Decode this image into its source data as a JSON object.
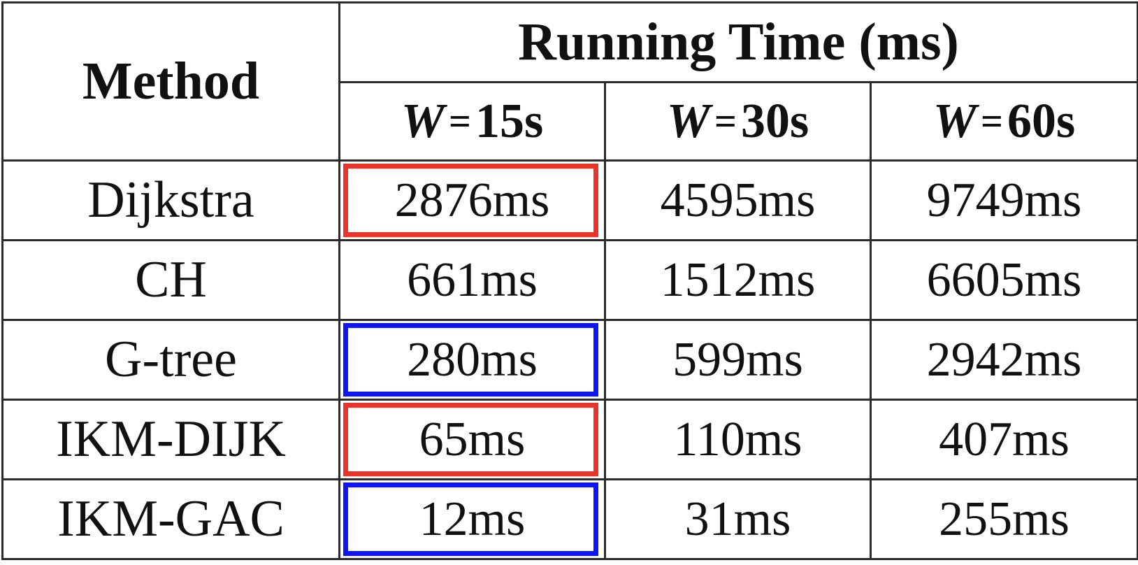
{
  "table": {
    "method_header": "Method",
    "group_header": "Running Time (ms)",
    "windows": [
      {
        "var": "W",
        "eq": "=",
        "value": "15s"
      },
      {
        "var": "W",
        "eq": "=",
        "value": "30s"
      },
      {
        "var": "W",
        "eq": "=",
        "value": "60s"
      }
    ],
    "rows": [
      {
        "method": "Dijkstra",
        "values": [
          "2876ms",
          "4595ms",
          "9749ms"
        ],
        "highlight": "red"
      },
      {
        "method": "CH",
        "values": [
          "661ms",
          "1512ms",
          "6605ms"
        ],
        "highlight": ""
      },
      {
        "method": "G-tree",
        "values": [
          "280ms",
          "599ms",
          "2942ms"
        ],
        "highlight": "blue"
      },
      {
        "method": "IKM-DIJK",
        "values": [
          "65ms",
          "110ms",
          "407ms"
        ],
        "highlight": "red"
      },
      {
        "method": "IKM-GAC",
        "values": [
          "12ms",
          "31ms",
          "255ms"
        ],
        "highlight": "blue"
      }
    ]
  },
  "colors": {
    "red": "#e8352b",
    "blue": "#1016f0",
    "border": "#2b2b2b"
  }
}
